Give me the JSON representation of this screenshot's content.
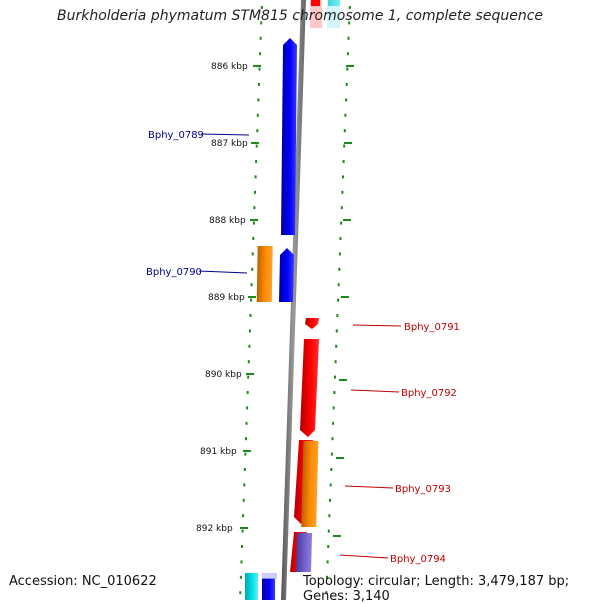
{
  "title": "Burkholderia phymatum STM815 chromosome 1, complete sequence",
  "footer": {
    "accession": "Accession: NC_010622",
    "stats": "Topology: circular; Length: 3,479,187 bp; Genes: 3,140"
  },
  "axis": {
    "ticks": [
      "886 kbp",
      "887 kbp",
      "888 kbp",
      "889 kbp",
      "890 kbp",
      "891 kbp",
      "892 kbp"
    ]
  },
  "genes": {
    "left": [
      "Bphy_0789",
      "Bphy_0790"
    ],
    "right": [
      "Bphy_0791",
      "Bphy_0792",
      "Bphy_0793",
      "Bphy_0794"
    ]
  },
  "colors": {
    "forward_cds": "#0000ff",
    "reverse_cds": "#ff0000",
    "orange_feature": "#ff8c00",
    "purple_feature": "#7060c8",
    "cyan_feature": "#00e0e8",
    "backbone": "#808080",
    "tick_green": "#1a8a1a",
    "label_left": "#00008b",
    "label_right": "#c00000"
  }
}
